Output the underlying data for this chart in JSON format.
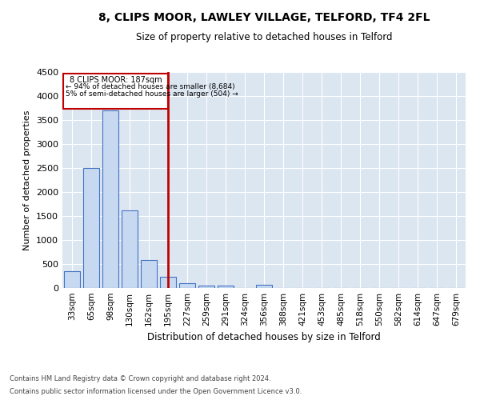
{
  "title": "8, CLIPS MOOR, LAWLEY VILLAGE, TELFORD, TF4 2FL",
  "subtitle": "Size of property relative to detached houses in Telford",
  "xlabel": "Distribution of detached houses by size in Telford",
  "ylabel": "Number of detached properties",
  "footnote1": "Contains HM Land Registry data © Crown copyright and database right 2024.",
  "footnote2": "Contains public sector information licensed under the Open Government Licence v3.0.",
  "property_label": "8 CLIPS MOOR: 187sqm",
  "annotation_line1": "← 94% of detached houses are smaller (8,684)",
  "annotation_line2": "5% of semi-detached houses are larger (504) →",
  "vline_idx": 5,
  "categories": [
    "33sqm",
    "65sqm",
    "98sqm",
    "130sqm",
    "162sqm",
    "195sqm",
    "227sqm",
    "259sqm",
    "291sqm",
    "324sqm",
    "356sqm",
    "388sqm",
    "421sqm",
    "453sqm",
    "485sqm",
    "518sqm",
    "550sqm",
    "582sqm",
    "614sqm",
    "647sqm",
    "679sqm"
  ],
  "bar_heights": [
    350,
    2500,
    3700,
    1620,
    580,
    230,
    105,
    55,
    50,
    0,
    60,
    0,
    0,
    0,
    0,
    0,
    0,
    0,
    0,
    0,
    0
  ],
  "bar_color": "#c6d9f1",
  "bar_edge_color": "#4472c4",
  "vline_color": "#c00000",
  "annotation_box_color": "#c00000",
  "background_color": "#dce6f1",
  "ylim": [
    0,
    4500
  ],
  "yticks": [
    0,
    500,
    1000,
    1500,
    2000,
    2500,
    3000,
    3500,
    4000,
    4500
  ]
}
